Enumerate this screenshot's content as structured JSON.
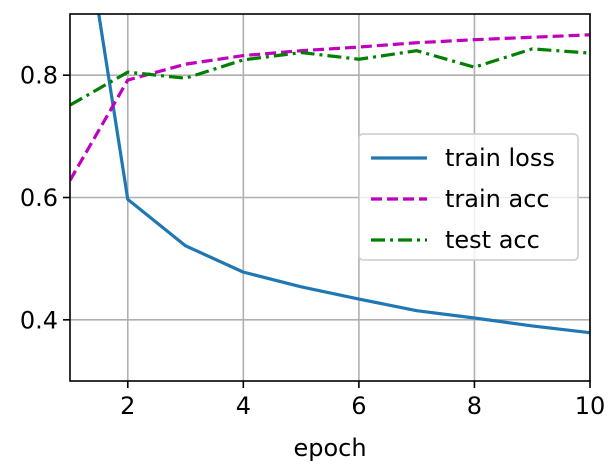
{
  "chart_data": {
    "type": "line",
    "xlabel": "epoch",
    "ylabel": "",
    "xlim": [
      1,
      10
    ],
    "ylim": [
      0.3,
      0.9
    ],
    "xticks": [
      2,
      4,
      6,
      8,
      10
    ],
    "yticks": [
      0.4,
      0.6,
      0.8
    ],
    "xtick_labels": [
      "2",
      "4",
      "6",
      "8",
      "10"
    ],
    "ytick_labels": [
      "0.4",
      "0.6",
      "0.8"
    ],
    "grid": true,
    "legend_position": "center-right",
    "series": [
      {
        "name": "train loss",
        "style": "solid",
        "color": "#1f77b4",
        "x": [
          1,
          2,
          3,
          4,
          5,
          6,
          7,
          8,
          9,
          10
        ],
        "y": [
          1.2,
          0.597,
          0.521,
          0.478,
          0.454,
          0.434,
          0.415,
          0.403,
          0.39,
          0.379
        ]
      },
      {
        "name": "train acc",
        "style": "dashed",
        "color": "#bf00bf",
        "x": [
          1,
          2,
          3,
          4,
          5,
          6,
          7,
          8,
          9,
          10
        ],
        "y": [
          0.628,
          0.792,
          0.818,
          0.832,
          0.84,
          0.846,
          0.853,
          0.858,
          0.862,
          0.866
        ]
      },
      {
        "name": "test acc",
        "style": "dashdot",
        "color": "#008000",
        "x": [
          1,
          2,
          3,
          4,
          5,
          6,
          7,
          8,
          9,
          10
        ],
        "y": [
          0.751,
          0.805,
          0.795,
          0.825,
          0.837,
          0.826,
          0.84,
          0.813,
          0.843,
          0.836
        ]
      }
    ]
  }
}
